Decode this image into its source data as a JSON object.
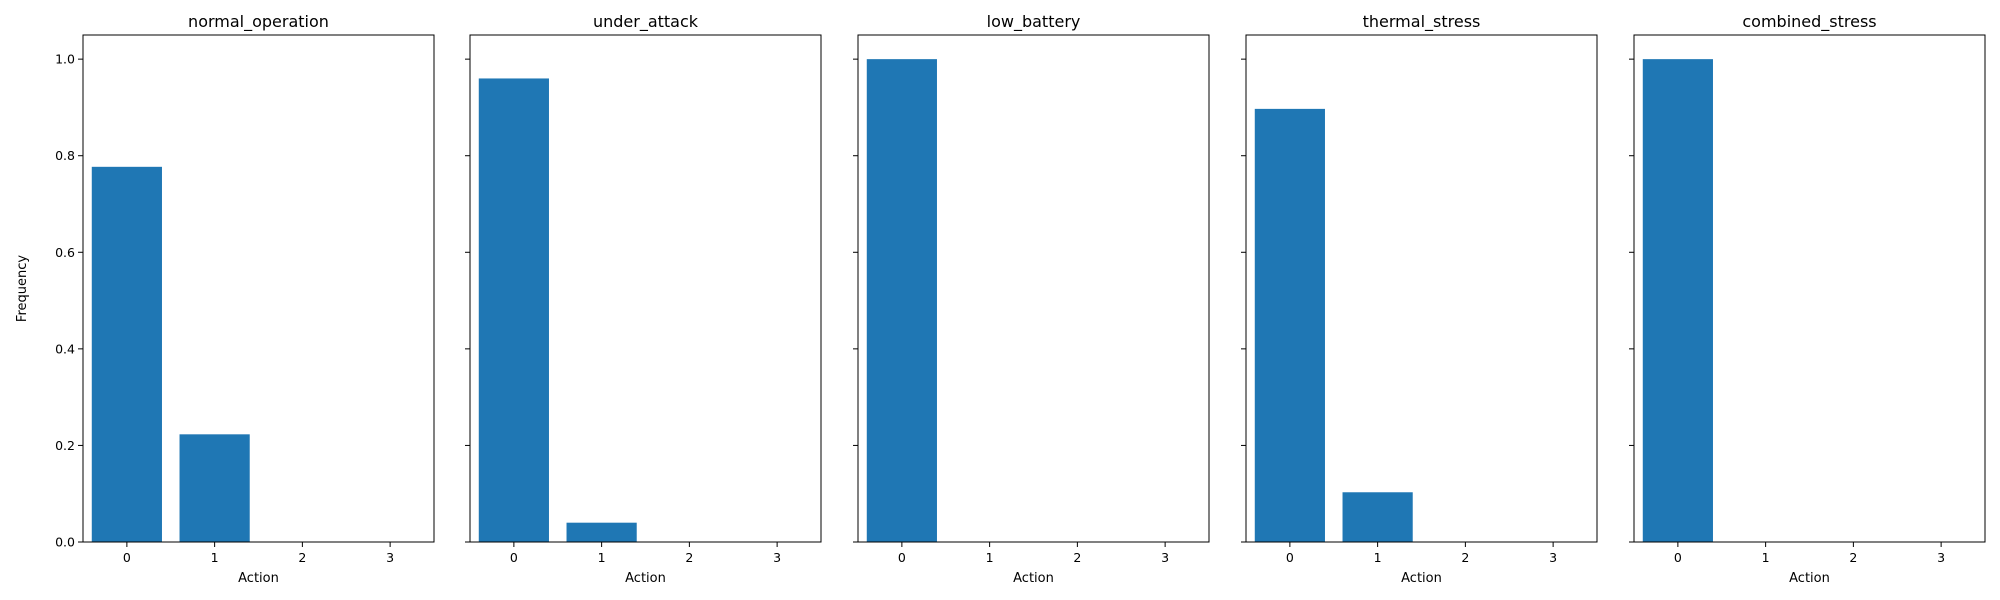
{
  "chart_data": {
    "type": "bar",
    "shared_y": true,
    "ylabel": "Frequency",
    "ylim": [
      0,
      1.05
    ],
    "yticks": [
      0.0,
      0.2,
      0.4,
      0.6,
      0.8,
      1.0
    ],
    "ytick_labels": [
      "0.0",
      "0.2",
      "0.4",
      "0.6",
      "0.8",
      "1.0"
    ],
    "bar_color": "#1f77b4",
    "panels": [
      {
        "title": "normal_operation",
        "xlabel": "Action",
        "categories": [
          "0",
          "1",
          "2",
          "3"
        ],
        "values": [
          0.777,
          0.223,
          0.0,
          0.0
        ]
      },
      {
        "title": "under_attack",
        "xlabel": "Action",
        "categories": [
          "0",
          "1",
          "2",
          "3"
        ],
        "values": [
          0.96,
          0.04,
          0.0,
          0.0
        ]
      },
      {
        "title": "low_battery",
        "xlabel": "Action",
        "categories": [
          "0",
          "1",
          "2",
          "3"
        ],
        "values": [
          1.0,
          0.0,
          0.0,
          0.0
        ]
      },
      {
        "title": "thermal_stress",
        "xlabel": "Action",
        "categories": [
          "0",
          "1",
          "2",
          "3"
        ],
        "values": [
          0.897,
          0.103,
          0.0,
          0.0
        ]
      },
      {
        "title": "combined_stress",
        "xlabel": "Action",
        "categories": [
          "0",
          "1",
          "2",
          "3"
        ],
        "values": [
          1.0,
          0.0,
          0.0,
          0.0
        ]
      }
    ]
  }
}
